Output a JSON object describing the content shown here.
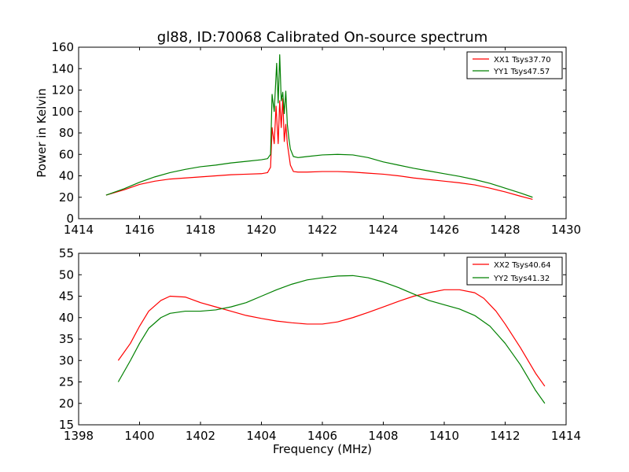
{
  "figure": {
    "title": "gl88, ID:70068 Calibrated On-source spectrum"
  },
  "chart_data": [
    {
      "type": "line",
      "title": "gl88, ID:70068 Calibrated On-source spectrum",
      "xlabel": "",
      "ylabel": "Power in Kelvin",
      "xlim": [
        1414,
        1430
      ],
      "ylim": [
        0,
        160
      ],
      "xticks": [
        1414,
        1416,
        1418,
        1420,
        1422,
        1424,
        1426,
        1428,
        1430
      ],
      "yticks": [
        0,
        20,
        40,
        60,
        80,
        100,
        120,
        140,
        160
      ],
      "grid": false,
      "legend_position": "top-right",
      "series": [
        {
          "name": "XX1 Tsys37.70",
          "color": "#ff0000",
          "x": [
            1414.9,
            1415.5,
            1416.0,
            1416.5,
            1417.0,
            1417.5,
            1418.0,
            1418.5,
            1419.0,
            1419.5,
            1420.0,
            1420.2,
            1420.3,
            1420.35,
            1420.42,
            1420.48,
            1420.55,
            1420.6,
            1420.65,
            1420.7,
            1420.75,
            1420.8,
            1420.85,
            1420.9,
            1420.95,
            1421.05,
            1421.2,
            1421.5,
            1422.0,
            1422.5,
            1423.0,
            1423.5,
            1424.0,
            1424.5,
            1425.0,
            1425.5,
            1426.0,
            1426.5,
            1427.0,
            1427.5,
            1428.0,
            1428.5,
            1428.9
          ],
          "y": [
            22,
            27,
            32,
            35,
            37,
            38,
            39,
            40,
            41,
            41.5,
            42,
            43,
            48,
            85,
            70,
            105,
            70,
            110,
            85,
            112,
            72,
            88,
            70,
            60,
            50,
            44,
            43.5,
            43.5,
            44,
            44,
            43.5,
            42.5,
            41.5,
            40,
            38,
            36.5,
            35,
            33.5,
            31.5,
            28.5,
            25,
            21,
            18
          ]
        },
        {
          "name": "YY1 Tsys47.57",
          "color": "#008000",
          "x": [
            1414.9,
            1415.5,
            1416.0,
            1416.5,
            1417.0,
            1417.5,
            1418.0,
            1418.5,
            1419.0,
            1419.5,
            1420.0,
            1420.2,
            1420.3,
            1420.35,
            1420.42,
            1420.5,
            1420.55,
            1420.6,
            1420.65,
            1420.7,
            1420.75,
            1420.8,
            1420.85,
            1420.9,
            1420.95,
            1421.05,
            1421.2,
            1421.5,
            1422.0,
            1422.5,
            1423.0,
            1423.5,
            1424.0,
            1424.5,
            1425.0,
            1425.5,
            1426.0,
            1426.5,
            1427.0,
            1427.5,
            1428.0,
            1428.5,
            1428.9
          ],
          "y": [
            22,
            28,
            34,
            39,
            43,
            46,
            48.5,
            50,
            52,
            53.5,
            55,
            56,
            60,
            116,
            100,
            145,
            108,
            153,
            110,
            118,
            98,
            119,
            88,
            75,
            65,
            58,
            57,
            58,
            59.5,
            60,
            59.5,
            57,
            53,
            50,
            47,
            44.5,
            42,
            39.5,
            36.5,
            33,
            28.5,
            24,
            20
          ]
        }
      ]
    },
    {
      "type": "line",
      "title": "",
      "xlabel": "Frequency (MHz)",
      "ylabel": "",
      "xlim": [
        1398,
        1414
      ],
      "ylim": [
        15,
        55
      ],
      "xticks": [
        1398,
        1400,
        1402,
        1404,
        1406,
        1408,
        1410,
        1412,
        1414
      ],
      "yticks": [
        15,
        20,
        25,
        30,
        35,
        40,
        45,
        50,
        55
      ],
      "grid": false,
      "legend_position": "top-right",
      "series": [
        {
          "name": "XX2 Tsys40.64",
          "color": "#ff0000",
          "x": [
            1399.3,
            1399.7,
            1400.0,
            1400.3,
            1400.7,
            1401.0,
            1401.5,
            1402.0,
            1402.5,
            1403.0,
            1403.5,
            1404.0,
            1404.5,
            1405.0,
            1405.5,
            1406.0,
            1406.5,
            1407.0,
            1407.5,
            1408.0,
            1408.5,
            1409.0,
            1409.5,
            1410.0,
            1410.5,
            1411.0,
            1411.3,
            1411.7,
            1412.0,
            1412.5,
            1413.0,
            1413.3
          ],
          "y": [
            30,
            34,
            38,
            41.5,
            44,
            45,
            44.8,
            43.5,
            42.5,
            41.5,
            40.5,
            39.8,
            39.2,
            38.8,
            38.5,
            38.5,
            39,
            40,
            41.2,
            42.5,
            43.8,
            45,
            45.8,
            46.5,
            46.5,
            45.8,
            44.5,
            41.5,
            38.5,
            33,
            27,
            24
          ]
        },
        {
          "name": "YY2 Tsys41.32",
          "color": "#008000",
          "x": [
            1399.3,
            1399.7,
            1400.0,
            1400.3,
            1400.7,
            1401.0,
            1401.5,
            1402.0,
            1402.5,
            1403.0,
            1403.5,
            1404.0,
            1404.5,
            1405.0,
            1405.5,
            1406.0,
            1406.5,
            1407.0,
            1407.5,
            1408.0,
            1408.5,
            1409.0,
            1409.5,
            1410.0,
            1410.5,
            1411.0,
            1411.5,
            1412.0,
            1412.5,
            1413.0,
            1413.3
          ],
          "y": [
            25,
            30,
            34,
            37.5,
            40,
            41,
            41.5,
            41.5,
            41.8,
            42.5,
            43.5,
            45,
            46.5,
            47.8,
            48.8,
            49.3,
            49.7,
            49.8,
            49.3,
            48.3,
            47,
            45.5,
            44,
            43,
            42,
            40.5,
            38,
            34,
            29,
            23,
            20
          ]
        }
      ]
    }
  ]
}
